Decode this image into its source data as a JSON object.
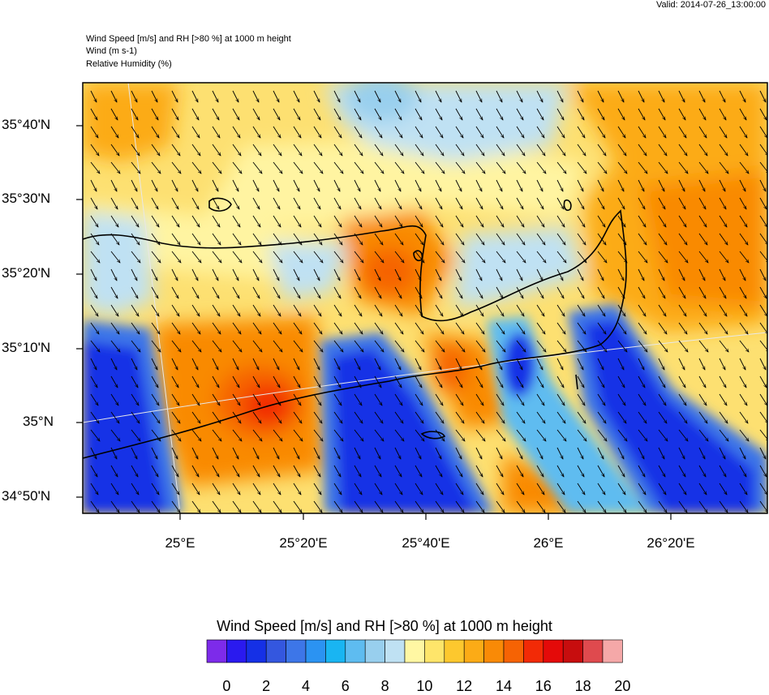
{
  "valid": "Valid: 2014-07-26_13:00:00",
  "header": {
    "line1": "Wind Speed [m/s] and RH [>80 %] at 1000 m height",
    "line2": "Wind   (m s-1)",
    "line3": "Relative Humidity   (%)"
  },
  "map": {
    "lat_labels": [
      "35°40'N",
      "35°30'N",
      "35°20'N",
      "35°10'N",
      "35°N",
      "34°50'N"
    ],
    "lon_labels": [
      "25°E",
      "25°20'E",
      "25°40'E",
      "26°E",
      "26°20'E"
    ],
    "wind_direction": "north-westerly (arrows pointing south-east)"
  },
  "colorbar": {
    "title": "Wind Speed [m/s] and RH [>80 %] at 1000 m height",
    "ticks": [
      "0",
      "2",
      "4",
      "6",
      "8",
      "10",
      "12",
      "14",
      "16",
      "18",
      "20"
    ],
    "colors": [
      "#7d2bea",
      "#2a1aef",
      "#1530e6",
      "#3457df",
      "#3d76e8",
      "#2b93f2",
      "#19b5f2",
      "#5ebcf0",
      "#98cfee",
      "#bfe1f3",
      "#fff7a3",
      "#fee56a",
      "#fdc82e",
      "#fcab16",
      "#f98a06",
      "#f66304",
      "#f22a06",
      "#e40a09",
      "#c70d0e",
      "#df4a4e",
      "#f5a8a8"
    ]
  }
}
